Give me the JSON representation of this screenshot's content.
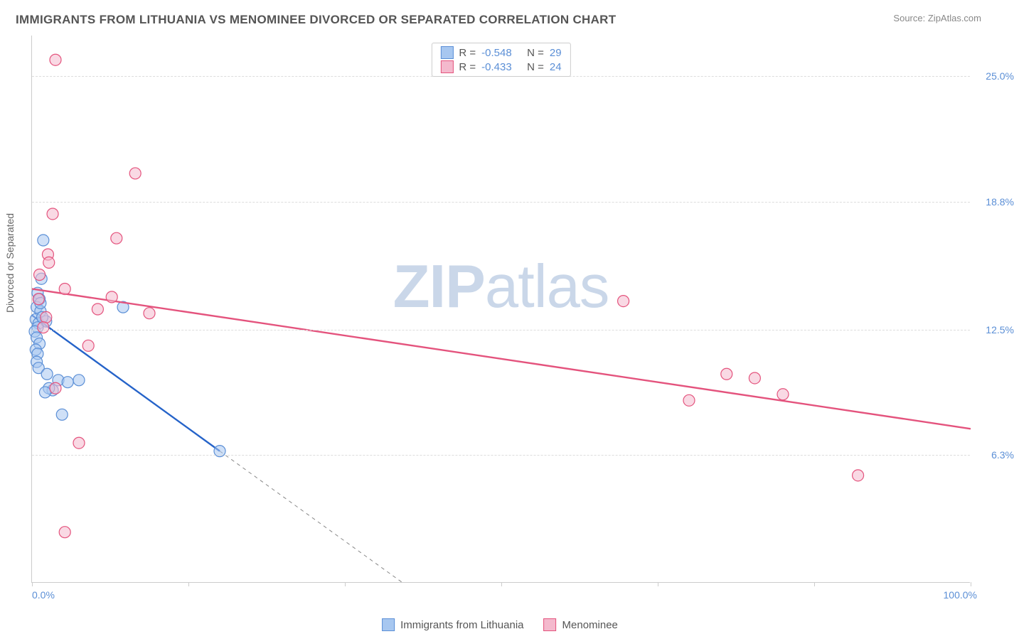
{
  "title": "IMMIGRANTS FROM LITHUANIA VS MENOMINEE DIVORCED OR SEPARATED CORRELATION CHART",
  "source_label": "Source:",
  "source_name": "ZipAtlas.com",
  "y_axis_label": "Divorced or Separated",
  "watermark": {
    "bold": "ZIP",
    "normal": "atlas"
  },
  "chart": {
    "type": "scatter",
    "xlim": [
      0,
      100
    ],
    "ylim": [
      0,
      27
    ],
    "x_ticks": [
      0,
      16.67,
      33.33,
      50,
      66.67,
      83.33,
      100
    ],
    "x_tick_labels": {
      "0": "0.0%",
      "100": "100.0%"
    },
    "y_grid": [
      6.3,
      12.5,
      18.8,
      25.0
    ],
    "y_tick_labels": [
      "6.3%",
      "12.5%",
      "18.8%",
      "25.0%"
    ],
    "background_color": "#ffffff",
    "grid_color": "#dddddd",
    "point_radius": 8,
    "point_opacity": 0.55,
    "series": [
      {
        "id": "lithuania",
        "name": "Immigrants from Lithuania",
        "fill": "#a7c7f0",
        "stroke": "#5b8fd6",
        "line_color": "#2563c9",
        "line_width": 2.4,
        "R": "-0.548",
        "N": "29",
        "regression": {
          "solid": {
            "x1": 0,
            "y1": 13.2,
            "x2": 20,
            "y2": 6.5
          },
          "dashed": {
            "x1": 20,
            "y1": 6.5,
            "x2": 39.5,
            "y2": 0
          }
        },
        "points": [
          [
            1.2,
            16.9
          ],
          [
            1.0,
            15.0
          ],
          [
            0.6,
            14.3
          ],
          [
            0.8,
            14.0
          ],
          [
            0.5,
            13.6
          ],
          [
            0.9,
            13.4
          ],
          [
            0.4,
            13.0
          ],
          [
            0.7,
            12.8
          ],
          [
            1.5,
            12.9
          ],
          [
            0.6,
            12.6
          ],
          [
            0.3,
            12.4
          ],
          [
            1.1,
            13.1
          ],
          [
            0.5,
            12.1
          ],
          [
            0.8,
            11.8
          ],
          [
            0.4,
            11.5
          ],
          [
            0.6,
            11.3
          ],
          [
            0.5,
            10.9
          ],
          [
            0.7,
            10.6
          ],
          [
            1.6,
            10.3
          ],
          [
            2.8,
            10.0
          ],
          [
            3.8,
            9.9
          ],
          [
            5.0,
            10.0
          ],
          [
            2.2,
            9.5
          ],
          [
            1.8,
            9.6
          ],
          [
            1.4,
            9.4
          ],
          [
            3.2,
            8.3
          ],
          [
            0.9,
            13.8
          ],
          [
            20.0,
            6.5
          ],
          [
            9.7,
            13.6
          ]
        ]
      },
      {
        "id": "menominee",
        "name": "Menominee",
        "fill": "#f4b9cd",
        "stroke": "#e4537d",
        "line_color": "#e4537d",
        "line_width": 2.4,
        "R": "-0.433",
        "N": "24",
        "regression": {
          "solid": {
            "x1": 0,
            "y1": 14.5,
            "x2": 100,
            "y2": 7.6
          }
        },
        "points": [
          [
            2.5,
            25.8
          ],
          [
            11.0,
            20.2
          ],
          [
            2.2,
            18.2
          ],
          [
            9.0,
            17.0
          ],
          [
            1.7,
            16.2
          ],
          [
            1.8,
            15.8
          ],
          [
            3.5,
            14.5
          ],
          [
            0.7,
            14.0
          ],
          [
            7.0,
            13.5
          ],
          [
            12.5,
            13.3
          ],
          [
            1.5,
            13.1
          ],
          [
            1.2,
            12.6
          ],
          [
            6.0,
            11.7
          ],
          [
            2.5,
            9.6
          ],
          [
            5.0,
            6.9
          ],
          [
            3.5,
            2.5
          ],
          [
            63.0,
            13.9
          ],
          [
            70.0,
            9.0
          ],
          [
            74.0,
            10.3
          ],
          [
            77.0,
            10.1
          ],
          [
            80.0,
            9.3
          ],
          [
            88.0,
            5.3
          ],
          [
            8.5,
            14.1
          ],
          [
            0.8,
            15.2
          ]
        ]
      }
    ],
    "legend_top": {
      "R_label": "R =",
      "N_label": "N ="
    },
    "label_color_blue": "#5b8fd6",
    "label_color_text": "#555555"
  },
  "legend_bottom": [
    {
      "label": "Immigrants from Lithuania",
      "fill": "#a7c7f0",
      "stroke": "#5b8fd6"
    },
    {
      "label": "Menominee",
      "fill": "#f4b9cd",
      "stroke": "#e4537d"
    }
  ]
}
